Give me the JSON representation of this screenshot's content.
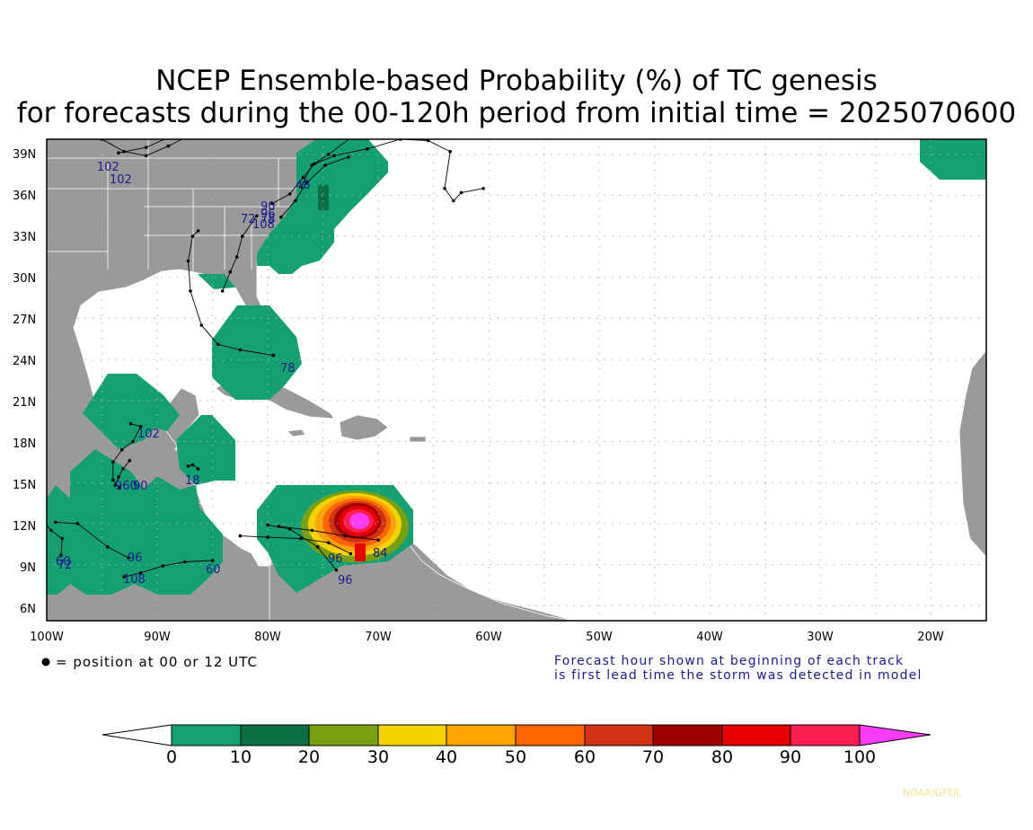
{
  "title": {
    "line1": "NCEP Ensemble-based Probability (%) of TC genesis",
    "line2": "for forecasts during the 00-120h period from initial time = 2025070600"
  },
  "map": {
    "lat_labels": [
      "39N",
      "36N",
      "33N",
      "30N",
      "27N",
      "24N",
      "21N",
      "18N",
      "15N",
      "12N",
      "9N",
      "6N"
    ],
    "lon_labels": [
      "100W",
      "90W",
      "80W",
      "70W",
      "60W",
      "50W",
      "40W",
      "30W",
      "20W"
    ],
    "colors": {
      "land": "#9a9a9a",
      "ocean": "#ffffff",
      "border": "#ffffff",
      "track": "#000000",
      "hour_label": "#1a1a8c"
    },
    "tracks": [
      {
        "start_label": "102",
        "points": [
          [
            -95,
            40.1
          ],
          [
            -93,
            39.2
          ],
          [
            -91,
            38.9
          ],
          [
            -89,
            39.6
          ],
          [
            -87,
            40.4
          ]
        ]
      },
      {
        "start_label": "102",
        "points": [
          [
            -93.5,
            39.1
          ],
          [
            -91,
            39.5
          ],
          [
            -88,
            40.6
          ]
        ]
      },
      {
        "start_label": "48",
        "points": [
          [
            -77,
            36.6
          ],
          [
            -76,
            38.2
          ],
          [
            -74,
            38.9
          ],
          [
            -71,
            39.4
          ],
          [
            -68,
            40.1
          ],
          [
            -65.5,
            40.0
          ],
          [
            -63.5,
            39.2
          ],
          [
            -64,
            36.5
          ],
          [
            -63.2,
            35.6
          ],
          [
            -62.5,
            36.2
          ],
          [
            -60.5,
            36.5
          ]
        ]
      },
      {
        "start_label": "90",
        "points": [
          [
            -79.6,
            35.4
          ],
          [
            -78,
            36.1
          ],
          [
            -76.8,
            37.3
          ],
          [
            -75.8,
            38.3
          ],
          [
            -74.5,
            39.0
          ],
          [
            -72.5,
            40.2
          ]
        ]
      },
      {
        "start_label": "108",
        "points": [
          [
            -78.8,
            34.4
          ],
          [
            -77.5,
            35.6
          ],
          [
            -76.5,
            36.9
          ],
          [
            -74.8,
            38.2
          ],
          [
            -72.7,
            38.8
          ]
        ]
      },
      {
        "start_label": "72",
        "points": [
          [
            -81,
            34.5
          ],
          [
            -82.3,
            33.0
          ],
          [
            -82.8,
            31.5
          ],
          [
            -83.4,
            30.4
          ],
          [
            -84.1,
            29.0
          ]
        ]
      },
      {
        "start_label": "78",
        "points": [
          [
            -79.5,
            24.3
          ],
          [
            -82.5,
            24.7
          ],
          [
            -84.5,
            25.1
          ],
          [
            -86,
            26.5
          ],
          [
            -87,
            29.0
          ],
          [
            -87.2,
            31.2
          ],
          [
            -86.8,
            33.0
          ],
          [
            -86.3,
            33.4
          ]
        ]
      },
      {
        "start_label": "102",
        "points": [
          [
            -92.4,
            19.3
          ],
          [
            -91.5,
            19.1
          ],
          [
            -92.2,
            18.0
          ],
          [
            -93.2,
            17.4
          ],
          [
            -94,
            16.5
          ],
          [
            -94,
            15.2
          ],
          [
            -93.4,
            14.6
          ]
        ]
      },
      {
        "start_label": "18",
        "points": [
          [
            -87.2,
            16.2
          ],
          [
            -86.8,
            16.3
          ],
          [
            -86.3,
            16.0
          ]
        ]
      },
      {
        "start_label": "90",
        "points": [
          [
            -93.8,
            14.8
          ],
          [
            -93.5,
            15.4
          ],
          [
            -93.1,
            16.0
          ],
          [
            -92.5,
            16.6
          ]
        ]
      },
      {
        "start_label": "60",
        "points": [
          [
            -85,
            9.3
          ],
          [
            -87.5,
            9.2
          ],
          [
            -89.5,
            8.9
          ],
          [
            -91.5,
            8.4
          ],
          [
            -93,
            8.1
          ]
        ]
      },
      {
        "start_label": "96",
        "points": [
          [
            -92.6,
            9.5
          ],
          [
            -94.5,
            10.3
          ],
          [
            -97.2,
            12.0
          ],
          [
            -99.2,
            12.1
          ]
        ]
      },
      {
        "start_label": "60",
        "points": [
          [
            -98.7,
            9.7
          ],
          [
            -98.6,
            10.9
          ],
          [
            -99.6,
            11.5
          ],
          [
            -100.5,
            12.4
          ]
        ]
      },
      {
        "start_label": "96",
        "points": [
          [
            -72.5,
            9.8
          ],
          [
            -74.5,
            10.6
          ],
          [
            -77,
            10.9
          ],
          [
            -80,
            11.0
          ],
          [
            -82.5,
            11.1
          ]
        ]
      },
      {
        "start_label": "96",
        "points": [
          [
            -73.8,
            8.6
          ],
          [
            -75.5,
            10.3
          ],
          [
            -78,
            11.6
          ],
          [
            -80,
            11.9
          ]
        ]
      },
      {
        "start_label": "84",
        "points": [
          [
            -70,
            10.8
          ],
          [
            -73,
            11.1
          ],
          [
            -76,
            11.5
          ],
          [
            -79,
            11.8
          ]
        ]
      }
    ],
    "hour_labels": [
      "102",
      "102",
      "48",
      "90",
      "96",
      "72",
      "78",
      "108",
      "78",
      "102",
      "18",
      "960",
      "90",
      "96",
      "60",
      "72",
      "60",
      "108",
      "96",
      "96",
      "84"
    ]
  },
  "legend": {
    "dot_text": "= position at 00 or 12 UTC",
    "note_line1": "Forecast hour shown at beginning of each track",
    "note_line2": "is first lead time the storm was detected in model"
  },
  "colorbar": {
    "labels": [
      "0",
      "10",
      "20",
      "30",
      "40",
      "50",
      "60",
      "70",
      "80",
      "90",
      "100"
    ],
    "colors": [
      "#ffffff",
      "#14a072",
      "#0d6f45",
      "#78a00f",
      "#f5d200",
      "#fca500",
      "#fc6400",
      "#d23214",
      "#a00000",
      "#e60000",
      "#fa1e50",
      "#fa3cfa"
    ]
  },
  "credit": "NOAA/GFDL"
}
